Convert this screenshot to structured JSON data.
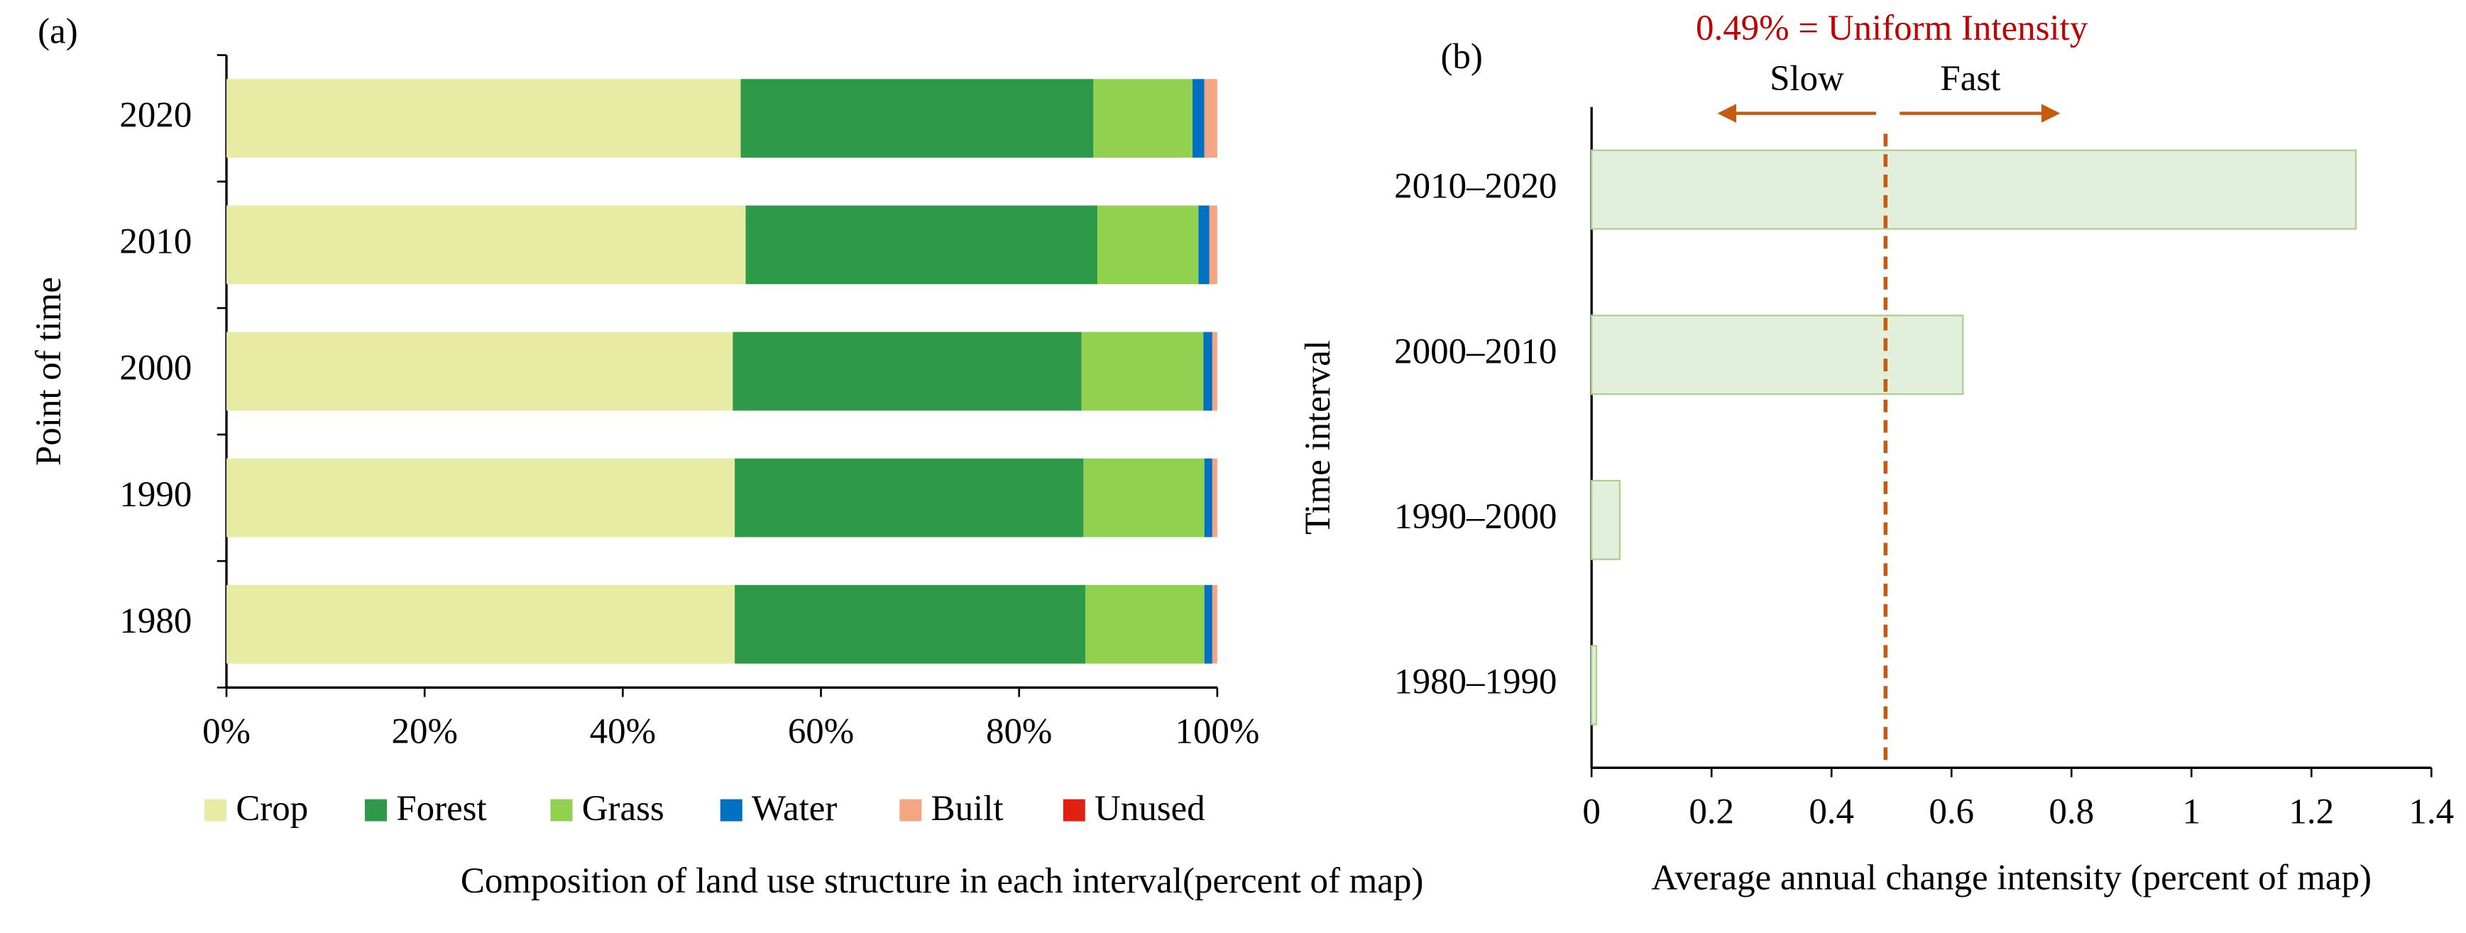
{
  "chart_data": [
    {
      "type": "stacked_bar",
      "panel_label": "(a)",
      "orientation": "horizontal",
      "x_label": "Composition of land use structure in each interval(percent of map)",
      "y_label": "Point  of  time",
      "categories": [
        "2020",
        "2010",
        "2000",
        "1990",
        "1980"
      ],
      "series": [
        {
          "name": "Crop",
          "color": "#e8eba3",
          "values": [
            51.9,
            52.4,
            51.1,
            51.3,
            51.3
          ]
        },
        {
          "name": "Forest",
          "color": "#2e9a48",
          "values": [
            35.6,
            35.5,
            35.2,
            35.2,
            35.4
          ]
        },
        {
          "name": "Grass",
          "color": "#92d050",
          "values": [
            10.0,
            10.2,
            12.3,
            12.2,
            12.0
          ]
        },
        {
          "name": "Water",
          "color": "#0070c0",
          "values": [
            1.2,
            1.1,
            0.9,
            0.8,
            0.8
          ]
        },
        {
          "name": "Built",
          "color": "#f4a582",
          "values": [
            1.3,
            0.8,
            0.5,
            0.5,
            0.5
          ]
        },
        {
          "name": "Unused",
          "color": "#e02010",
          "values": [
            0,
            0,
            0,
            0,
            0
          ]
        }
      ],
      "xlim": [
        0,
        100
      ],
      "xticks": [
        {
          "value": 0,
          "label": "0%"
        },
        {
          "value": 20,
          "label": "20%"
        },
        {
          "value": 40,
          "label": "40%"
        },
        {
          "value": 60,
          "label": "60%"
        },
        {
          "value": 80,
          "label": "80%"
        },
        {
          "value": 100,
          "label": "100%"
        }
      ],
      "legend": "bottom"
    },
    {
      "type": "bar",
      "panel_label": "(b)",
      "orientation": "horizontal",
      "x_label": "Average annual change intensity (percent of map)",
      "y_label": "Time  interval",
      "categories": [
        "2010–2020",
        "2000–2010",
        "1990–2000",
        "1980–1990"
      ],
      "values": [
        1.274,
        0.619,
        0.047,
        0.008
      ],
      "color": "#e2efda",
      "edge_color": "#a9d08e",
      "xlim": [
        0,
        1.4
      ],
      "xticks": [
        0,
        0.2,
        0.4,
        0.6,
        0.8,
        1,
        1.2,
        1.4
      ],
      "reference_line": {
        "value": 0.49,
        "label": "0.49% = Uniform Intensity",
        "color": "#c55a11",
        "label_color": "#c00000"
      },
      "annotations": [
        "Slow",
        "Fast"
      ]
    }
  ]
}
